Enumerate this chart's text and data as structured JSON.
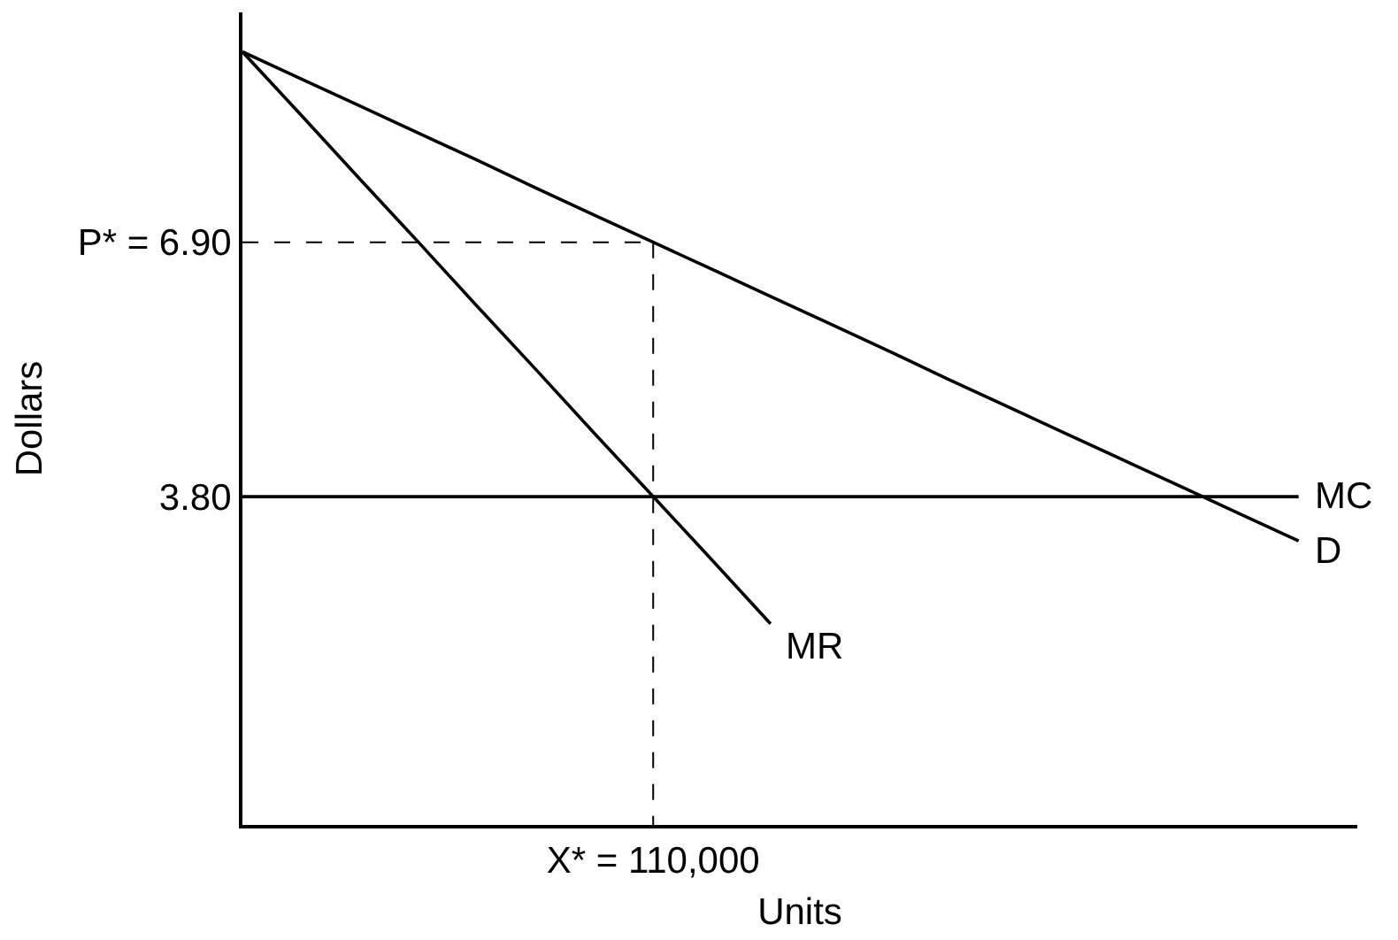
{
  "chart_data": {
    "type": "line",
    "xlabel": "Units",
    "ylabel": "Dollars",
    "categories": [
      null,
      null,
      null,
      null,
      null,
      null,
      null,
      "X* = 110,000",
      null,
      null,
      null,
      null,
      null,
      null,
      null,
      null,
      null,
      null,
      null,
      null
    ],
    "ylim": [
      -0.2,
      9.7
    ],
    "yticks": [
      {
        "value": 6.9,
        "label": "P* = 6.90"
      },
      {
        "value": 3.8,
        "label": "3.80"
      }
    ],
    "series": [
      {
        "name": "D",
        "color": "#000000",
        "values": [
          9.22,
          8.89,
          8.56,
          8.23,
          7.9,
          7.56,
          7.23,
          6.9,
          6.57,
          6.24,
          5.91,
          5.58,
          5.24,
          4.91,
          4.58,
          4.25,
          3.92,
          3.59,
          3.26,
          null
        ]
      },
      {
        "name": "MR",
        "color": "#000000",
        "values": [
          9.22,
          8.45,
          7.67,
          6.9,
          6.12,
          5.35,
          4.57,
          3.8,
          3.03,
          2.25,
          null,
          null,
          null,
          null,
          null,
          null,
          null,
          null,
          null,
          null
        ]
      },
      {
        "name": "MC",
        "color": "#000000",
        "values": [
          3.8,
          3.8,
          3.8,
          3.8,
          3.8,
          3.8,
          3.8,
          3.8,
          3.8,
          3.8,
          3.8,
          3.8,
          3.8,
          3.8,
          3.8,
          3.8,
          3.8,
          3.8,
          3.8,
          null
        ]
      },
      {
        "color": "#000000",
        "line_style": "dashed",
        "values": [
          6.9,
          6.9,
          6.9,
          6.9,
          6.9,
          6.9,
          6.9,
          6.9,
          null,
          null,
          null,
          null,
          null,
          null,
          null,
          null,
          null,
          null,
          null,
          null
        ]
      },
      {
        "color": "#000000",
        "line_style": "dashed",
        "x": [
          "X* = 110,000",
          "X* = 110,000"
        ],
        "values": [
          6.9,
          -0.2
        ]
      }
    ],
    "grid": false,
    "legend": false,
    "marker": "none",
    "line_style": "solid"
  }
}
